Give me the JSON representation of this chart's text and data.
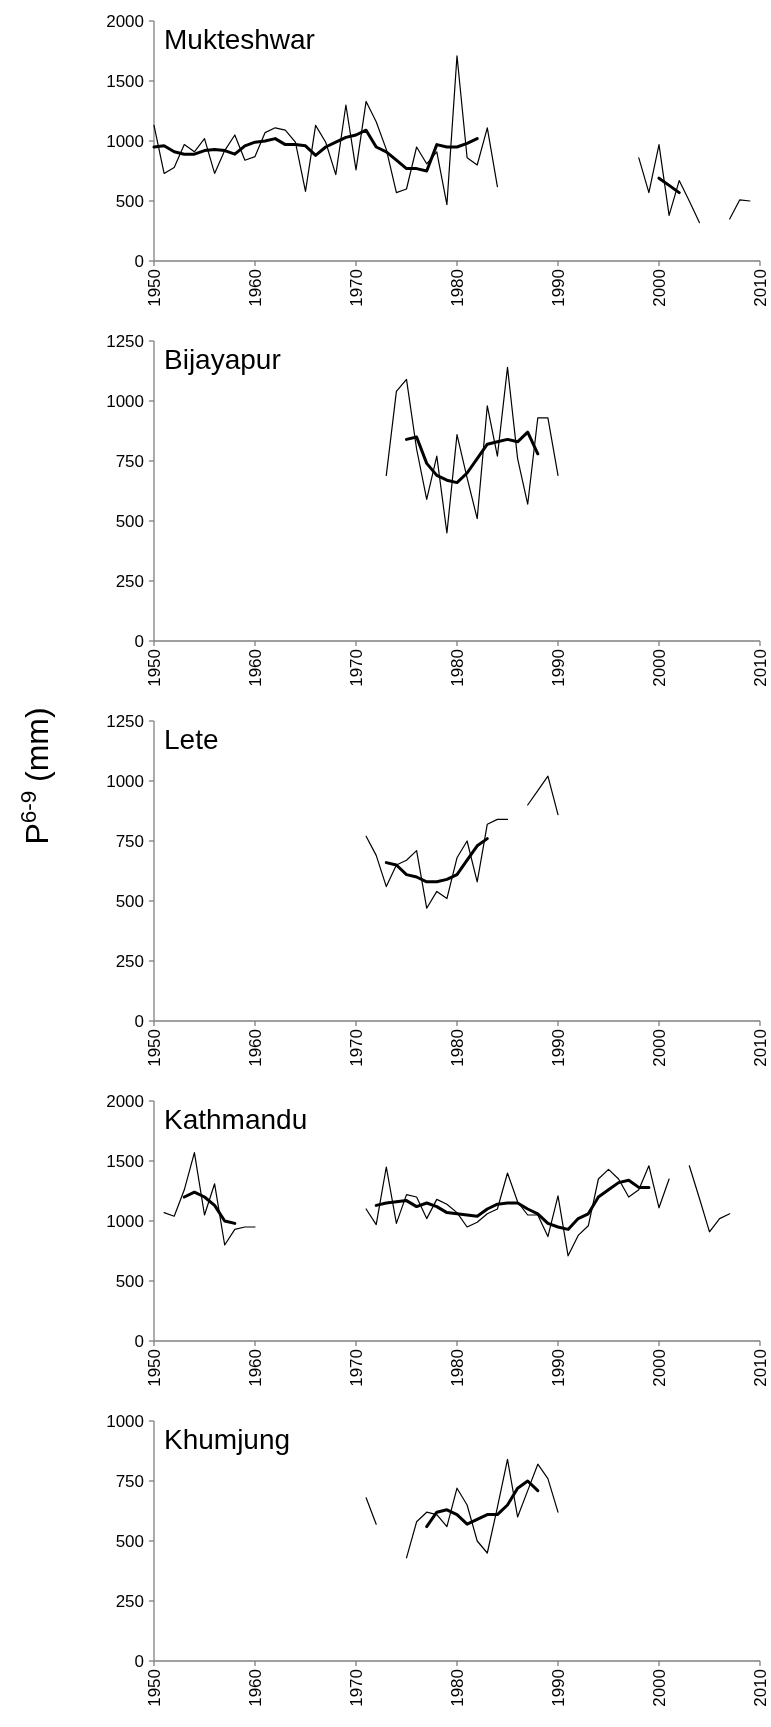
{
  "chart_data": [
    {
      "type": "line",
      "title": "Mukteshwar",
      "xlim": [
        1950,
        2010
      ],
      "xticks": [
        1950,
        1960,
        1970,
        1980,
        1990,
        2000,
        2010
      ],
      "ylim": [
        0,
        2000
      ],
      "yticks": [
        0,
        500,
        1000,
        1500,
        2000
      ],
      "grid": false,
      "marker": "none",
      "line_style": "solid",
      "series": [
        {
          "color": "#000000",
          "x": [
            1950,
            1951,
            1952,
            1953,
            1954,
            1955,
            1956,
            1957,
            1958,
            1959,
            1960,
            1961,
            1962,
            1963,
            1964,
            1965,
            1966,
            1967,
            1968,
            1969,
            1970,
            1971,
            1972,
            1973,
            1974,
            1975,
            1976,
            1977,
            1978,
            1979,
            1980,
            1981,
            1982,
            1983,
            1984,
            1985,
            1998,
            1999,
            2000,
            2001,
            2002,
            2003,
            2004,
            2005,
            2007,
            2008,
            2009
          ],
          "values": [
            1130,
            730,
            780,
            970,
            910,
            1020,
            730,
            920,
            1050,
            840,
            870,
            1070,
            1110,
            1090,
            990,
            580,
            1130,
            990,
            720,
            1300,
            760,
            1330,
            1160,
            930,
            570,
            600,
            950,
            810,
            910,
            470,
            1710,
            860,
            800,
            1110,
            620,
            null,
            860,
            570,
            970,
            380,
            670,
            500,
            320,
            null,
            350,
            510,
            500
          ]
        },
        {
          "color": "#000000",
          "x": [
            1950,
            1951,
            1952,
            1953,
            1954,
            1955,
            1956,
            1957,
            1958,
            1959,
            1960,
            1961,
            1962,
            1963,
            1964,
            1965,
            1966,
            1967,
            1968,
            1969,
            1970,
            1971,
            1972,
            1973,
            1974,
            1975,
            1976,
            1977,
            1978,
            1979,
            1980,
            1981,
            1982,
            1983,
            2000,
            2001,
            2002
          ],
          "values": [
            950,
            960,
            910,
            890,
            890,
            920,
            930,
            920,
            890,
            960,
            990,
            1000,
            1020,
            970,
            970,
            960,
            880,
            950,
            990,
            1030,
            1050,
            1090,
            950,
            910,
            840,
            770,
            770,
            750,
            970,
            950,
            950,
            980,
            1020,
            null,
            690,
            630,
            570
          ]
        }
      ]
    },
    {
      "type": "line",
      "title": "Bijayapur",
      "xlim": [
        1950,
        2010
      ],
      "xticks": [
        1950,
        1960,
        1970,
        1980,
        1990,
        2000,
        2010
      ],
      "ylim": [
        0,
        1250
      ],
      "yticks": [
        0,
        250,
        500,
        750,
        1000,
        1250
      ],
      "grid": false,
      "marker": "none",
      "line_style": "solid",
      "series": [
        {
          "color": "#000000",
          "x": [
            1973,
            1974,
            1975,
            1976,
            1977,
            1978,
            1979,
            1980,
            1981,
            1982,
            1983,
            1984,
            1985,
            1986,
            1987,
            1988,
            1989,
            1990
          ],
          "values": [
            690,
            1040,
            1090,
            800,
            590,
            770,
            450,
            860,
            680,
            510,
            980,
            770,
            1140,
            760,
            570,
            930,
            930,
            690
          ]
        },
        {
          "color": "#000000",
          "x": [
            1975,
            1976,
            1977,
            1978,
            1979,
            1980,
            1981,
            1982,
            1983,
            1984,
            1985,
            1986,
            1987,
            1988
          ],
          "values": [
            840,
            850,
            740,
            690,
            670,
            660,
            700,
            760,
            820,
            830,
            840,
            830,
            870,
            780
          ]
        }
      ]
    },
    {
      "type": "line",
      "title": "Lete",
      "ylabel": "P$^{6-9}$ (mm)",
      "xlim": [
        1950,
        2010
      ],
      "xticks": [
        1950,
        1960,
        1970,
        1980,
        1990,
        2000,
        2010
      ],
      "ylim": [
        0,
        1250
      ],
      "yticks": [
        0,
        250,
        500,
        750,
        1000,
        1250
      ],
      "grid": false,
      "marker": "none",
      "line_style": "solid",
      "series": [
        {
          "color": "#000000",
          "x": [
            1971,
            1972,
            1973,
            1974,
            1975,
            1976,
            1977,
            1978,
            1979,
            1980,
            1981,
            1982,
            1983,
            1984,
            1985,
            1986,
            1987,
            1988,
            1989,
            1990
          ],
          "values": [
            770,
            690,
            560,
            650,
            670,
            710,
            470,
            540,
            510,
            680,
            750,
            580,
            820,
            840,
            840,
            null,
            900,
            960,
            1020,
            860
          ]
        },
        {
          "color": "#000000",
          "x": [
            1973,
            1974,
            1975,
            1976,
            1977,
            1978,
            1979,
            1980,
            1981,
            1982,
            1983
          ],
          "values": [
            660,
            650,
            610,
            600,
            580,
            580,
            590,
            610,
            670,
            730,
            760
          ]
        }
      ]
    },
    {
      "type": "line",
      "title": "Kathmandu",
      "xlim": [
        1950,
        2010
      ],
      "xticks": [
        1950,
        1960,
        1970,
        1980,
        1990,
        2000,
        2010
      ],
      "ylim": [
        0,
        2000
      ],
      "yticks": [
        0,
        500,
        1000,
        1500,
        2000
      ],
      "grid": false,
      "marker": "none",
      "line_style": "solid",
      "series": [
        {
          "color": "#000000",
          "x": [
            1951,
            1952,
            1953,
            1954,
            1955,
            1956,
            1957,
            1958,
            1959,
            1960,
            1961,
            1971,
            1972,
            1973,
            1974,
            1975,
            1976,
            1977,
            1978,
            1979,
            1980,
            1981,
            1982,
            1983,
            1984,
            1985,
            1986,
            1987,
            1988,
            1989,
            1990,
            1991,
            1992,
            1993,
            1994,
            1995,
            1996,
            1997,
            1998,
            1999,
            2000,
            2001,
            2002,
            2003,
            2004,
            2005,
            2006,
            2007
          ],
          "values": [
            1070,
            1040,
            1260,
            1570,
            1050,
            1310,
            800,
            930,
            950,
            950,
            null,
            1100,
            970,
            1450,
            980,
            1220,
            1200,
            1020,
            1180,
            1140,
            1070,
            950,
            990,
            1060,
            1100,
            1400,
            1160,
            1050,
            1050,
            870,
            1210,
            710,
            880,
            960,
            1350,
            1430,
            1350,
            1200,
            1260,
            1460,
            1110,
            1350,
            null,
            1460,
            1190,
            910,
            1020,
            1060
          ]
        },
        {
          "color": "#000000",
          "x": [
            1953,
            1954,
            1955,
            1956,
            1957,
            1958,
            1959,
            1972,
            1973,
            1974,
            1975,
            1976,
            1977,
            1978,
            1979,
            1980,
            1981,
            1982,
            1983,
            1984,
            1985,
            1986,
            1987,
            1988,
            1989,
            1990,
            1991,
            1992,
            1993,
            1994,
            1995,
            1996,
            1997,
            1998,
            1999
          ],
          "values": [
            1200,
            1240,
            1200,
            1130,
            1000,
            980,
            null,
            1130,
            1150,
            1160,
            1170,
            1120,
            1150,
            1120,
            1070,
            1060,
            1050,
            1040,
            1100,
            1140,
            1150,
            1150,
            1100,
            1060,
            980,
            950,
            930,
            1020,
            1060,
            1200,
            1260,
            1320,
            1340,
            1280,
            1280
          ]
        }
      ]
    },
    {
      "type": "line",
      "title": "Khumjung",
      "xlim": [
        1950,
        2010
      ],
      "xticks": [
        1950,
        1960,
        1970,
        1980,
        1990,
        2000,
        2010
      ],
      "ylim": [
        0,
        1000
      ],
      "yticks": [
        0,
        250,
        500,
        750,
        1000
      ],
      "grid": false,
      "marker": "none",
      "line_style": "solid",
      "series": [
        {
          "color": "#000000",
          "x": [
            1971,
            1972,
            1973,
            1975,
            1976,
            1977,
            1978,
            1979,
            1980,
            1981,
            1982,
            1983,
            1984,
            1985,
            1986,
            1987,
            1988,
            1989,
            1990
          ],
          "values": [
            680,
            570,
            null,
            430,
            580,
            620,
            610,
            560,
            720,
            650,
            500,
            450,
            640,
            840,
            600,
            710,
            820,
            760,
            620
          ]
        },
        {
          "color": "#000000",
          "x": [
            1977,
            1978,
            1979,
            1980,
            1981,
            1982,
            1983,
            1984,
            1985,
            1986,
            1987,
            1988
          ],
          "values": [
            560,
            620,
            630,
            610,
            570,
            590,
            610,
            610,
            650,
            720,
            750,
            710
          ]
        }
      ]
    }
  ]
}
